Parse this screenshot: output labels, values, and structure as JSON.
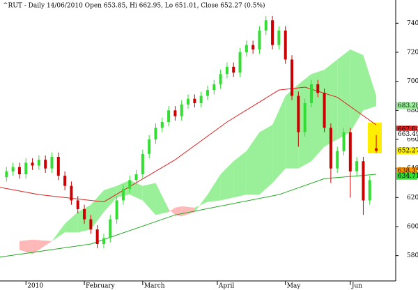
{
  "chart_data": {
    "type": "candlestick",
    "title": "^RUT - Daily 14/06/2010 Open 653.85, Hi 662.95, Lo 651.01, Close 652.27 (0.5%)",
    "xlim": [
      0,
      61
    ],
    "xticks": [
      {
        "value": 4,
        "label": "2010"
      },
      {
        "value": 13,
        "label": "February"
      },
      {
        "value": 22,
        "label": "March"
      },
      {
        "value": 33.5,
        "label": "April"
      },
      {
        "value": 44,
        "label": "May"
      },
      {
        "value": 54,
        "label": "Jun"
      }
    ],
    "ylim": [
      564,
      756
    ],
    "yticks": [
      580,
      600,
      620,
      640,
      660,
      680,
      700,
      720,
      740
    ],
    "up_color": "#33dd33",
    "down_color": "#cc0000",
    "candles": {
      "x": [
        1,
        2,
        3,
        4,
        5,
        6,
        7,
        8,
        9,
        10,
        11,
        12,
        13,
        14,
        15,
        16,
        17,
        18,
        19,
        20,
        21,
        22,
        23,
        24,
        25,
        26,
        27,
        28,
        29,
        30,
        31,
        32,
        33,
        34,
        35,
        36,
        37,
        38,
        39,
        40,
        41,
        42,
        43,
        44,
        45,
        46,
        47,
        48,
        49,
        50,
        51,
        52,
        53,
        54,
        55,
        56,
        57,
        58
      ],
      "open": [
        634,
        638,
        641,
        636,
        644,
        642,
        646,
        640,
        648,
        635,
        628,
        618,
        612,
        605,
        598,
        588,
        592,
        605,
        618,
        626,
        632,
        636,
        650,
        660,
        668,
        672,
        680,
        676,
        684,
        688,
        685,
        690,
        694,
        698,
        705,
        710,
        706,
        720,
        725,
        722,
        735,
        742,
        725,
        735,
        715,
        690,
        665,
        685,
        698,
        692,
        668,
        640,
        652,
        665,
        638,
        645,
        618,
        653.85
      ],
      "high": [
        641,
        644,
        644,
        647,
        647,
        649,
        649,
        651,
        651,
        638,
        631,
        621,
        615,
        608,
        601,
        595,
        608,
        621,
        629,
        635,
        639,
        653,
        663,
        671,
        675,
        683,
        683,
        687,
        691,
        691,
        693,
        697,
        701,
        708,
        713,
        713,
        723,
        728,
        728,
        738,
        745,
        745,
        738,
        738,
        718,
        693,
        688,
        701,
        701,
        695,
        671,
        655,
        668,
        668,
        648,
        648,
        635,
        662.95
      ],
      "low": [
        631,
        635,
        633,
        633,
        639,
        639,
        637,
        637,
        632,
        625,
        615,
        609,
        602,
        595,
        585,
        585,
        589,
        602,
        615,
        623,
        629,
        633,
        647,
        657,
        665,
        669,
        673,
        673,
        681,
        682,
        682,
        687,
        691,
        695,
        702,
        703,
        703,
        717,
        719,
        719,
        732,
        722,
        722,
        712,
        687,
        655,
        662,
        682,
        689,
        665,
        630,
        637,
        649,
        620,
        635,
        608,
        615,
        651.01
      ],
      "close": [
        638,
        641,
        636,
        644,
        642,
        646,
        640,
        648,
        635,
        628,
        618,
        612,
        605,
        598,
        588,
        592,
        605,
        618,
        626,
        632,
        636,
        650,
        660,
        668,
        672,
        680,
        676,
        684,
        688,
        685,
        690,
        694,
        698,
        705,
        710,
        706,
        720,
        725,
        722,
        735,
        742,
        725,
        735,
        715,
        690,
        665,
        685,
        698,
        692,
        668,
        640,
        652,
        665,
        638,
        645,
        618,
        632,
        652.27
      ]
    },
    "series": [
      {
        "color": "#dd2222",
        "x": [
          0,
          6,
          16,
          27,
          35,
          43,
          47,
          52,
          58
        ],
        "values": [
          627,
          622,
          617,
          646,
          672,
          694,
          696,
          689,
          670
        ]
      },
      {
        "color": "#22aa22",
        "x": [
          0,
          14,
          27,
          43,
          50,
          58
        ],
        "values": [
          579,
          588,
          608,
          622,
          633,
          636
        ]
      }
    ],
    "cloud": {
      "up_color": "#99f099",
      "down_color": "#ffb8b8",
      "x": [
        3,
        5,
        8,
        10,
        12,
        14,
        16,
        18,
        20,
        22,
        24,
        26,
        27,
        28,
        30,
        32,
        34,
        36,
        38,
        40,
        42,
        44,
        46,
        48,
        50,
        52,
        54,
        56,
        58
      ],
      "span_a": [
        584,
        581,
        590,
        602,
        610,
        615,
        625,
        628,
        632,
        628,
        630,
        612,
        608,
        607,
        610,
        622,
        636,
        645,
        652,
        665,
        670,
        690,
        698,
        705,
        708,
        715,
        722,
        718,
        690
      ],
      "span_b": [
        590,
        591,
        590,
        596,
        596,
        598,
        610,
        620,
        622,
        618,
        608,
        610,
        613,
        614,
        613,
        617,
        618,
        620,
        622,
        622,
        630,
        640,
        640,
        645,
        655,
        660,
        665,
        680,
        683
      ]
    },
    "price_labels": [
      {
        "value": 683.28,
        "color": "#99f099"
      },
      {
        "value": 667.04,
        "color": "#dd2222"
      },
      {
        "value": 663.495,
        "color": "#ffffff"
      },
      {
        "value": 652.27,
        "color": "#ffee00"
      },
      {
        "value": 638.35,
        "color": "#ff9900"
      },
      {
        "value": 634.71,
        "color": "#33dd33"
      }
    ]
  }
}
